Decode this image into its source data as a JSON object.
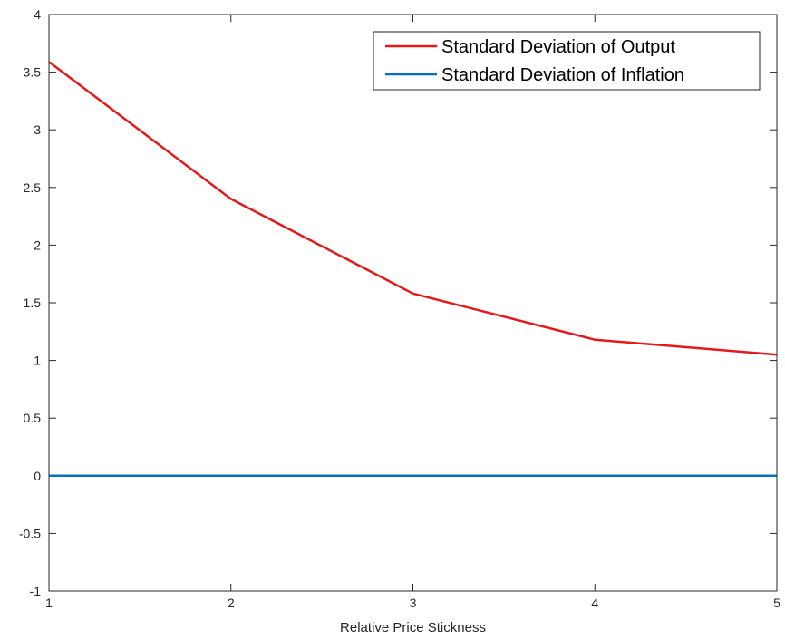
{
  "chart_data": {
    "type": "line",
    "title": "",
    "xlabel": "Relative Price Stickness",
    "ylabel": "",
    "x": [
      1,
      2,
      3,
      4,
      5
    ],
    "xlim": [
      1,
      5
    ],
    "ylim": [
      -1,
      4
    ],
    "xticks": [
      1,
      2,
      3,
      4,
      5
    ],
    "yticks": [
      -1,
      -0.5,
      0,
      0.5,
      1,
      1.5,
      2,
      2.5,
      3,
      3.5,
      4
    ],
    "xtick_labels": [
      "1",
      "2",
      "3",
      "4",
      "5"
    ],
    "ytick_labels": [
      "-1",
      "-0.5",
      "0",
      "0.5",
      "1",
      "1.5",
      "2",
      "2.5",
      "3",
      "3.5",
      "4"
    ],
    "grid": false,
    "legend_position": "top-right",
    "series": [
      {
        "name": "Standard Deviation of Output",
        "color": "#e31a1c",
        "values": [
          3.59,
          2.4,
          1.58,
          1.18,
          1.05
        ]
      },
      {
        "name": "Standard Deviation of Inflation",
        "color": "#0072bd",
        "values": [
          0,
          0,
          0,
          0,
          0
        ]
      }
    ]
  }
}
